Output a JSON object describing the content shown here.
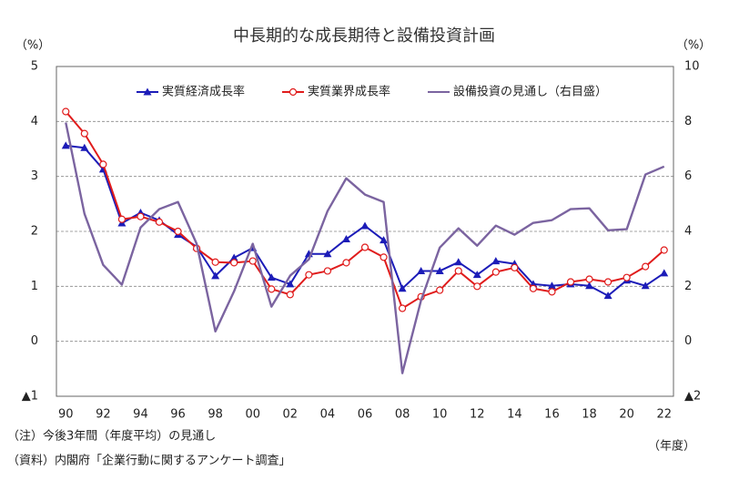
{
  "chart_data": {
    "type": "line",
    "title": "中長期的な成長期待と設備投資計画",
    "ylabel": "（%）",
    "y2label": "（%）",
    "xlabel": "（年度）",
    "notes": [
      "（注）今後3年間（年度平均）の見通し",
      "（資料）内閣府「企業行動に関するアンケート調査」"
    ],
    "categories": [
      "90",
      null,
      "92",
      null,
      "94",
      null,
      "96",
      null,
      "98",
      null,
      "00",
      null,
      "02",
      null,
      "04",
      null,
      "06",
      null,
      "08",
      null,
      "10",
      null,
      "12",
      null,
      "14",
      null,
      "16",
      null,
      "18",
      null,
      "20",
      null,
      "22"
    ],
    "ylim": [
      -1,
      5
    ],
    "yticks": [
      {
        "value": -1,
        "label": "▲1"
      },
      0,
      1,
      2,
      3,
      4,
      5
    ],
    "y2lim": [
      -2,
      10
    ],
    "y2ticks": [
      {
        "value": -2,
        "label": "▲2"
      },
      0,
      2,
      4,
      6,
      8,
      10
    ],
    "grid": true,
    "series": [
      {
        "name": "実質経済成長率",
        "color": "#1c1cb8",
        "marker": "triangle",
        "values": [
          3.56,
          3.52,
          3.13,
          2.15,
          2.34,
          2.2,
          1.94,
          1.72,
          1.19,
          1.52,
          1.7,
          1.16,
          1.04,
          1.59,
          1.59,
          1.86,
          2.1,
          1.84,
          0.96,
          1.28,
          1.28,
          1.44,
          1.21,
          1.46,
          1.41,
          1.04,
          1.01,
          1.04,
          1.01,
          0.83,
          1.11,
          1.01,
          1.24
        ]
      },
      {
        "name": "実質業界成長率",
        "color": "#e01c1c",
        "marker": "circle",
        "values": [
          4.18,
          3.78,
          3.22,
          2.22,
          2.27,
          2.17,
          2.0,
          1.69,
          1.44,
          1.43,
          1.46,
          0.95,
          0.85,
          1.21,
          1.28,
          1.43,
          1.71,
          1.53,
          0.6,
          0.81,
          0.93,
          1.28,
          1.0,
          1.26,
          1.34,
          0.96,
          0.9,
          1.08,
          1.13,
          1.08,
          1.16,
          1.36,
          1.66
        ]
      },
      {
        "name": "設備投資の見通し（右目盛）",
        "color": "#7b64a0",
        "marker": "none",
        "axis": "y2",
        "values": [
          7.96,
          4.64,
          2.78,
          2.06,
          4.14,
          4.81,
          5.07,
          3.55,
          0.36,
          1.82,
          3.55,
          1.26,
          2.39,
          2.98,
          4.74,
          5.93,
          5.34,
          5.07,
          -1.16,
          1.49,
          3.41,
          4.11,
          3.48,
          4.21,
          3.88,
          4.31,
          4.41,
          4.81,
          4.84,
          4.04,
          4.08,
          6.07,
          6.36
        ]
      }
    ]
  }
}
